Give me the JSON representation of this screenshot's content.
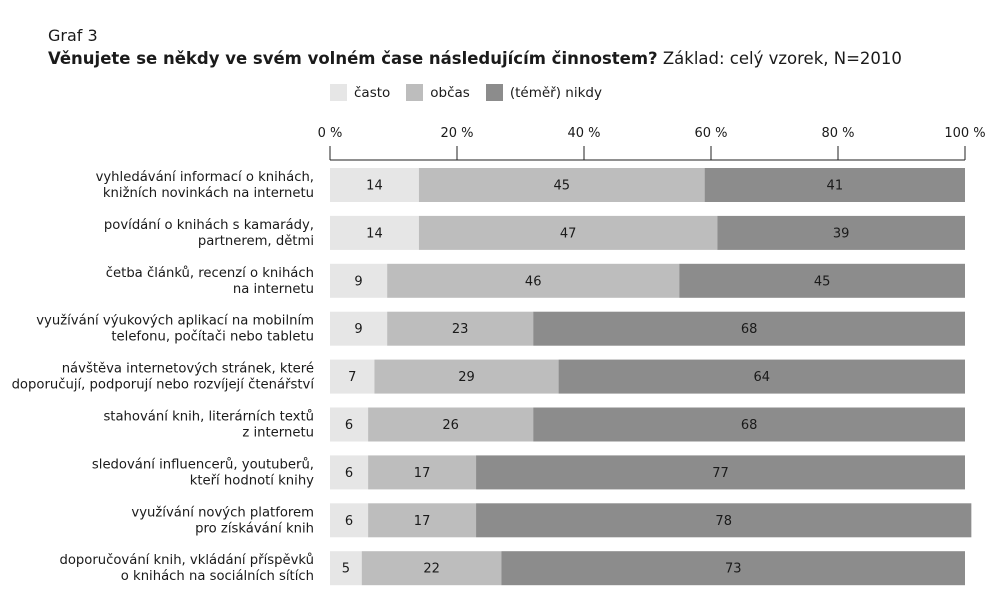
{
  "chart_data": {
    "type": "bar",
    "overline": "Graf 3",
    "title": "Věnujete se někdy ve svém volném čase následujícím činnostem?",
    "subtitle": "Základ: celý vzorek, N=2010",
    "xlim": [
      0,
      100
    ],
    "ticks": [
      0,
      20,
      40,
      60,
      80,
      100
    ],
    "tick_labels": [
      "0 %",
      "20 %",
      "40 %",
      "60 %",
      "80 %",
      "100 %"
    ],
    "legend_position": "top",
    "stacked": true,
    "orientation": "horizontal",
    "series": [
      {
        "name": "často",
        "color": "#e6e6e6",
        "values": [
          14,
          14,
          9,
          9,
          7,
          6,
          6,
          6,
          5
        ]
      },
      {
        "name": "občas",
        "color": "#bdbdbd",
        "values": [
          45,
          47,
          46,
          23,
          29,
          26,
          17,
          17,
          22
        ]
      },
      {
        "name": "(téměř) nikdy",
        "color": "#8c8c8c",
        "values": [
          41,
          39,
          45,
          68,
          64,
          68,
          77,
          78,
          73
        ]
      }
    ],
    "categories": [
      [
        "vyhledávání informací o knihách,",
        "knižních novinkách na internetu"
      ],
      [
        "povídání o knihách s kamarády,",
        "partnerem, dětmi"
      ],
      [
        "četba článků, recenzí o knihách",
        "na internetu"
      ],
      [
        "využívání výukových aplikací na mobilním",
        "telefonu, počítači nebo tabletu"
      ],
      [
        "návštěva internetových stránek, které",
        "doporučují, podporují nebo rozvíjejí čtenářství"
      ],
      [
        "stahování knih, literárních textů",
        "z internetu"
      ],
      [
        "sledování influencerů, youtuberů,",
        "kteří hodnotí knihy"
      ],
      [
        "využívání nových platforem",
        "pro získávání knih"
      ],
      [
        "doporučování knih, vkládání příspěvků",
        "o knihách na sociálních sítích"
      ]
    ]
  }
}
